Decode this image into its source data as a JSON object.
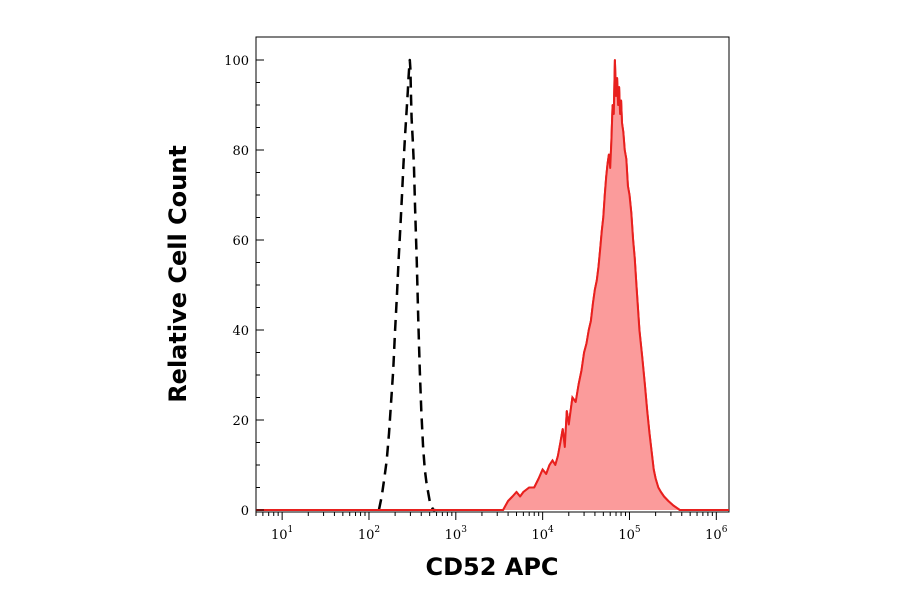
{
  "chart_data": {
    "type": "area",
    "title": "",
    "xlabel": "CD52 APC",
    "ylabel": "Relative Cell Count",
    "x_scale": "log",
    "xlim": [
      5,
      1400000
    ],
    "ylim": [
      0,
      104
    ],
    "grid": false,
    "y_ticks": [
      {
        "value": 0,
        "label": "0"
      },
      {
        "value": 20,
        "label": "20"
      },
      {
        "value": 40,
        "label": "40"
      },
      {
        "value": 60,
        "label": "60"
      },
      {
        "value": 80,
        "label": "80"
      },
      {
        "value": 100,
        "label": "100"
      }
    ],
    "x_ticks": [
      {
        "value": 10,
        "base": "10",
        "exp": "1"
      },
      {
        "value": 100,
        "base": "10",
        "exp": "2"
      },
      {
        "value": 1000,
        "base": "10",
        "exp": "3"
      },
      {
        "value": 10000,
        "base": "10",
        "exp": "4"
      },
      {
        "value": 100000,
        "base": "10",
        "exp": "5"
      },
      {
        "value": 1000000,
        "base": "10",
        "exp": "6"
      }
    ],
    "series": [
      {
        "style": "dashed",
        "color": "#000000",
        "x": [
          130,
          140,
          150,
          160,
          170,
          180,
          190,
          200,
          210,
          220,
          230,
          240,
          250,
          260,
          270,
          280,
          285,
          290,
          295,
          300,
          305,
          310,
          320,
          330,
          340,
          355,
          370,
          385,
          400,
          420,
          440,
          460,
          480,
          500,
          520,
          550,
          580
        ],
        "y": [
          0,
          3,
          7,
          11,
          17,
          24,
          31,
          40,
          48,
          56,
          63,
          70,
          77,
          83,
          88,
          93,
          96,
          98,
          100,
          98,
          92,
          87,
          82,
          76,
          67,
          55,
          42,
          31,
          22,
          14,
          9,
          6,
          4,
          2,
          1,
          0,
          0
        ]
      },
      {
        "style": "filled",
        "color": "#e8201e",
        "fill": "#fb9b9b",
        "x": [
          3500,
          4000,
          4500,
          5000,
          5500,
          6000,
          7000,
          8000,
          9000,
          10000,
          11000,
          12000,
          13000,
          14000,
          15000,
          16000,
          17000,
          18000,
          19000,
          20000,
          22000,
          24000,
          26000,
          28000,
          30000,
          32000,
          34000,
          36000,
          38000,
          40000,
          42000,
          44000,
          46000,
          48000,
          50000,
          52000,
          54000,
          56000,
          58000,
          60000,
          62000,
          64000,
          66000,
          68000,
          70000,
          72000,
          74000,
          76000,
          78000,
          80000,
          82000,
          85000,
          88000,
          92000,
          96000,
          100000,
          105000,
          110000,
          115000,
          120000,
          125000,
          130000,
          140000,
          150000,
          160000,
          170000,
          180000,
          190000,
          200000,
          215000,
          230000,
          250000,
          280000,
          320000,
          380000,
          450000,
          550000,
          700000,
          900000
        ],
        "y": [
          0,
          2,
          3,
          4,
          3,
          4,
          5,
          5,
          7,
          9,
          8,
          10,
          11,
          10,
          12,
          15,
          18,
          14,
          22,
          19,
          25,
          24,
          28,
          31,
          35,
          37,
          40,
          42,
          46,
          49,
          51,
          54,
          58,
          62,
          65,
          70,
          74,
          77,
          79,
          76,
          82,
          90,
          88,
          100,
          92,
          96,
          90,
          94,
          88,
          91,
          86,
          84,
          80,
          78,
          72,
          70,
          66,
          60,
          56,
          50,
          45,
          40,
          34,
          28,
          22,
          17,
          13,
          9,
          7,
          5,
          4,
          3,
          2,
          1,
          0,
          0,
          0,
          0,
          0
        ]
      }
    ]
  }
}
